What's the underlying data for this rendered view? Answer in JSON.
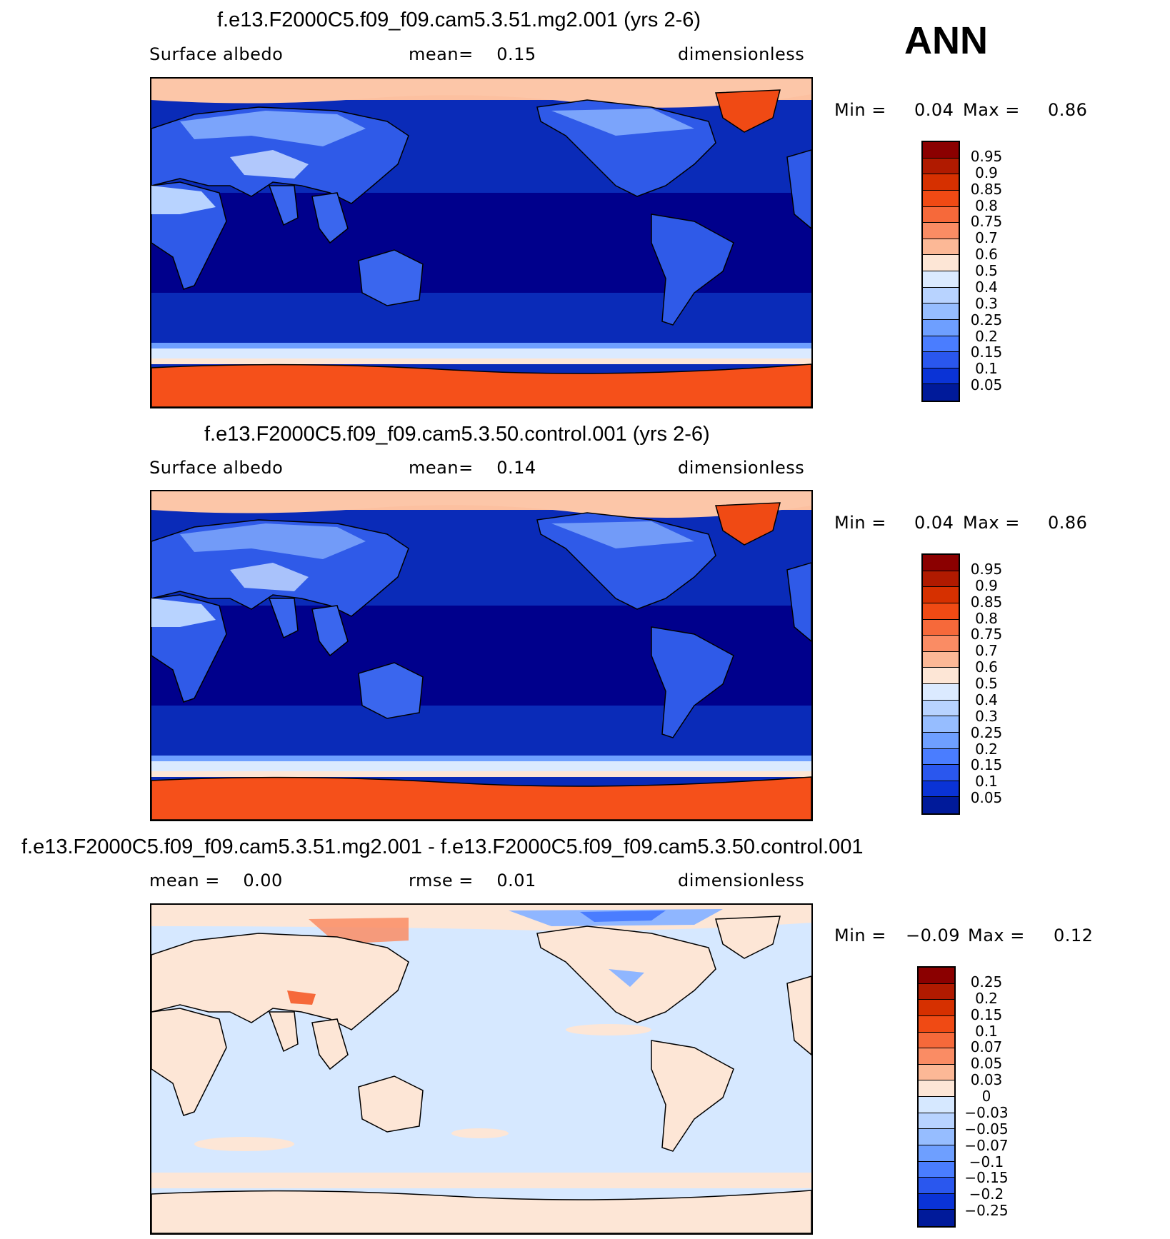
{
  "season": "ANN",
  "panels": [
    {
      "title": "f.e13.F2000C5.f09_f09.cam5.3.51.mg2.001 (yrs 2-6)",
      "left_label": "Surface albedo",
      "center_label": "mean=    0.15",
      "units": "dimensionless",
      "min_label": "Min =",
      "min_value": "0.04",
      "max_label": "Max =",
      "max_value": "0.86",
      "kind": "abs"
    },
    {
      "title": "f.e13.F2000C5.f09_f09.cam5.3.50.control.001 (yrs 2-6)",
      "left_label": "Surface albedo",
      "center_label": "mean=    0.14",
      "units": "dimensionless",
      "min_label": "Min =",
      "min_value": "0.04",
      "max_label": "Max =",
      "max_value": "0.86",
      "kind": "abs"
    },
    {
      "title": "f.e13.F2000C5.f09_f09.cam5.3.51.mg2.001 - f.e13.F2000C5.f09_f09.cam5.3.50.control.001",
      "left_label": "mean =    0.00",
      "center_label": "rmse =    0.01",
      "units": "dimensionless",
      "min_label": "Min =",
      "min_value": "−0.09",
      "max_label": "Max =",
      "max_value": "0.12",
      "kind": "diff"
    }
  ],
  "colorbars": {
    "abs": {
      "labels": [
        "0.95",
        "0.9",
        "0.85",
        "0.8",
        "0.75",
        "0.7",
        "0.6",
        "0.5",
        "0.4",
        "0.3",
        "0.25",
        "0.2",
        "0.15",
        "0.1",
        "0.05"
      ],
      "colors": [
        "#8b0000",
        "#b01a00",
        "#d63000",
        "#f04a14",
        "#f6693a",
        "#fa8c64",
        "#fcb896",
        "#fde6d6",
        "#dbeaff",
        "#b8d3ff",
        "#96bdff",
        "#6e9fff",
        "#4a7dff",
        "#2a57ee",
        "#0a33d6",
        "#001a9a"
      ]
    },
    "diff": {
      "labels": [
        "0.25",
        "0.2",
        "0.15",
        "0.1",
        "0.07",
        "0.05",
        "0.03",
        "0",
        "−0.03",
        "−0.05",
        "−0.07",
        "−0.1",
        "−0.15",
        "−0.2",
        "−0.25"
      ],
      "colors": [
        "#8b0000",
        "#b01a00",
        "#d63000",
        "#f04a14",
        "#f6693a",
        "#fa8c64",
        "#fcb896",
        "#fde6d6",
        "#d6e8ff",
        "#b8d3ff",
        "#96bdff",
        "#6e9fff",
        "#4a7dff",
        "#2a57ee",
        "#0a33d6",
        "#001a9a"
      ]
    }
  }
}
